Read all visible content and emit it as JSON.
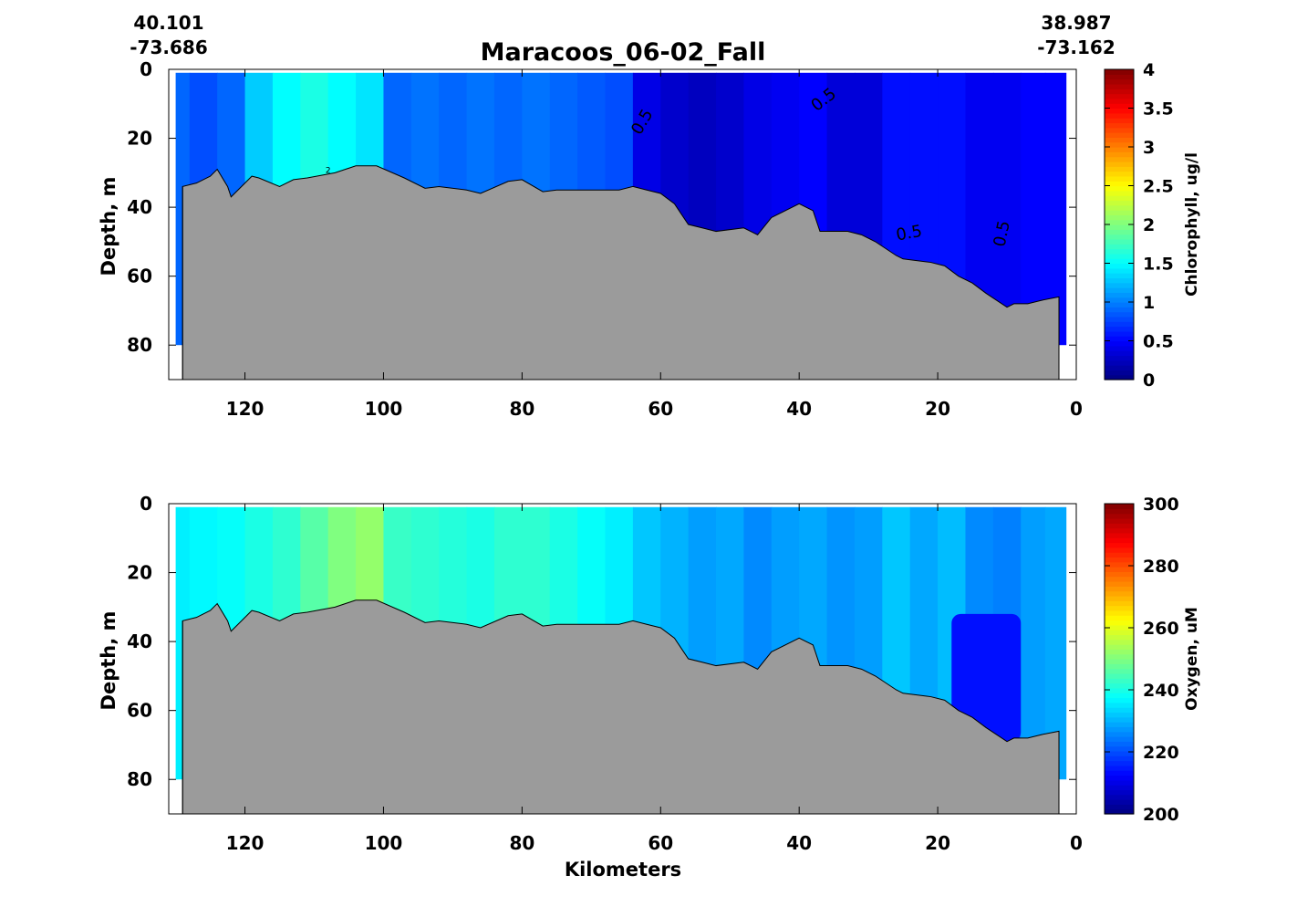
{
  "figure": {
    "title": "Maracoos_06-02_Fall",
    "start_lat": "40.101",
    "start_lon": "-73.686",
    "end_lat": "38.987",
    "end_lon": "-73.162",
    "xlabel": "Kilometers"
  },
  "chart_data": [
    {
      "type": "heatmap",
      "name": "chlorophyll",
      "ylabel": "Depth, m",
      "colorbar_label": "Chlorophyll, ug/l",
      "colormap": "jet",
      "clim": [
        0,
        4
      ],
      "colorbar_ticks": [
        "0",
        "0.5",
        "1",
        "1.5",
        "2",
        "2.5",
        "3",
        "3.5",
        "4"
      ],
      "xlim": [
        131,
        0
      ],
      "ylim": [
        0,
        90
      ],
      "x_reversed": true,
      "y_reversed": true,
      "xticks": [
        "120",
        "100",
        "80",
        "60",
        "40",
        "20",
        "0"
      ],
      "yticks": [
        "0",
        "20",
        "40",
        "60",
        "80"
      ],
      "contour_labels": [
        "0.5",
        "0.5",
        "0.5",
        "0.5",
        "2"
      ],
      "columns": [
        {
          "x": 130,
          "v": 0.9
        },
        {
          "x": 126,
          "v": 0.8
        },
        {
          "x": 122,
          "v": 0.9
        },
        {
          "x": 118,
          "v": 1.3
        },
        {
          "x": 114,
          "v": 1.5
        },
        {
          "x": 110,
          "v": 1.6
        },
        {
          "x": 106,
          "v": 1.5
        },
        {
          "x": 102,
          "v": 1.4
        },
        {
          "x": 98,
          "v": 0.9
        },
        {
          "x": 94,
          "v": 0.95
        },
        {
          "x": 90,
          "v": 0.9
        },
        {
          "x": 86,
          "v": 0.95
        },
        {
          "x": 82,
          "v": 0.9
        },
        {
          "x": 78,
          "v": 0.95
        },
        {
          "x": 74,
          "v": 0.9
        },
        {
          "x": 70,
          "v": 0.85
        },
        {
          "x": 66,
          "v": 0.8
        },
        {
          "x": 62,
          "v": 0.4
        },
        {
          "x": 58,
          "v": 0.3
        },
        {
          "x": 54,
          "v": 0.25
        },
        {
          "x": 50,
          "v": 0.3
        },
        {
          "x": 46,
          "v": 0.4
        },
        {
          "x": 42,
          "v": 0.45
        },
        {
          "x": 38,
          "v": 0.5
        },
        {
          "x": 34,
          "v": 0.35
        },
        {
          "x": 30,
          "v": 0.35
        },
        {
          "x": 26,
          "v": 0.55
        },
        {
          "x": 22,
          "v": 0.55
        },
        {
          "x": 18,
          "v": 0.55
        },
        {
          "x": 14,
          "v": 0.45
        },
        {
          "x": 10,
          "v": 0.45
        },
        {
          "x": 6,
          "v": 0.5
        },
        {
          "x": 3,
          "v": 0.5
        }
      ],
      "bathymetry": [
        [
          129,
          34
        ],
        [
          127,
          33
        ],
        [
          125,
          31
        ],
        [
          124,
          29
        ],
        [
          122.5,
          34
        ],
        [
          122,
          37
        ],
        [
          121,
          35
        ],
        [
          119,
          31
        ],
        [
          118,
          31.5
        ],
        [
          115,
          34
        ],
        [
          113,
          32
        ],
        [
          111,
          31.5
        ],
        [
          107,
          30
        ],
        [
          104,
          28
        ],
        [
          101,
          28
        ],
        [
          97,
          31.5
        ],
        [
          94,
          34.5
        ],
        [
          92,
          34
        ],
        [
          88,
          35
        ],
        [
          86,
          36
        ],
        [
          82,
          32.5
        ],
        [
          80,
          32
        ],
        [
          77,
          35.5
        ],
        [
          75,
          35
        ],
        [
          66,
          35
        ],
        [
          64,
          34
        ],
        [
          62,
          35
        ],
        [
          60,
          36
        ],
        [
          58,
          39
        ],
        [
          56,
          45
        ],
        [
          54,
          46
        ],
        [
          52,
          47
        ],
        [
          48,
          46
        ],
        [
          46,
          48
        ],
        [
          44,
          43
        ],
        [
          40,
          39
        ],
        [
          38,
          41
        ],
        [
          37,
          47
        ],
        [
          33,
          47
        ],
        [
          31,
          48
        ],
        [
          29,
          50
        ],
        [
          26,
          54
        ],
        [
          25,
          55
        ],
        [
          21,
          56
        ],
        [
          19,
          57
        ],
        [
          17,
          60
        ],
        [
          15,
          62
        ],
        [
          13,
          65
        ],
        [
          10,
          69
        ],
        [
          9,
          68
        ],
        [
          7,
          68
        ],
        [
          5,
          67
        ],
        [
          2.5,
          66
        ],
        [
          2.5,
          90
        ]
      ]
    },
    {
      "type": "heatmap",
      "name": "oxygen",
      "ylabel": "Depth, m",
      "colorbar_label": "Oxygen, uM",
      "colormap": "jet",
      "clim": [
        200,
        300
      ],
      "colorbar_ticks": [
        "200",
        "220",
        "240",
        "260",
        "280",
        "300"
      ],
      "xlim": [
        131,
        0
      ],
      "ylim": [
        0,
        90
      ],
      "x_reversed": true,
      "y_reversed": true,
      "xticks": [
        "120",
        "100",
        "80",
        "60",
        "40",
        "20",
        "0"
      ],
      "yticks": [
        "0",
        "20",
        "40",
        "60",
        "80"
      ],
      "columns": [
        {
          "x": 130,
          "v": 236
        },
        {
          "x": 126,
          "v": 237
        },
        {
          "x": 122,
          "v": 238
        },
        {
          "x": 118,
          "v": 240
        },
        {
          "x": 114,
          "v": 242
        },
        {
          "x": 110,
          "v": 246
        },
        {
          "x": 106,
          "v": 250
        },
        {
          "x": 102,
          "v": 252
        },
        {
          "x": 98,
          "v": 243
        },
        {
          "x": 94,
          "v": 242
        },
        {
          "x": 90,
          "v": 241
        },
        {
          "x": 86,
          "v": 240
        },
        {
          "x": 82,
          "v": 242
        },
        {
          "x": 78,
          "v": 242
        },
        {
          "x": 74,
          "v": 240
        },
        {
          "x": 70,
          "v": 238
        },
        {
          "x": 66,
          "v": 236
        },
        {
          "x": 62,
          "v": 232
        },
        {
          "x": 58,
          "v": 230
        },
        {
          "x": 54,
          "v": 228
        },
        {
          "x": 50,
          "v": 229
        },
        {
          "x": 46,
          "v": 226
        },
        {
          "x": 42,
          "v": 228
        },
        {
          "x": 38,
          "v": 229
        },
        {
          "x": 34,
          "v": 227
        },
        {
          "x": 30,
          "v": 228
        },
        {
          "x": 26,
          "v": 232
        },
        {
          "x": 22,
          "v": 229
        },
        {
          "x": 18,
          "v": 231
        },
        {
          "x": 14,
          "v": 226
        },
        {
          "x": 10,
          "v": 225
        },
        {
          "x": 6,
          "v": 228
        },
        {
          "x": 3,
          "v": 229
        }
      ],
      "low_patch": {
        "x_range": [
          18,
          8
        ],
        "y_range": [
          32,
          69
        ],
        "v": 214
      },
      "bathymetry": [
        [
          129,
          34
        ],
        [
          127,
          33
        ],
        [
          125,
          31
        ],
        [
          124,
          29
        ],
        [
          122.5,
          34
        ],
        [
          122,
          37
        ],
        [
          121,
          35
        ],
        [
          119,
          31
        ],
        [
          118,
          31.5
        ],
        [
          115,
          34
        ],
        [
          113,
          32
        ],
        [
          111,
          31.5
        ],
        [
          107,
          30
        ],
        [
          104,
          28
        ],
        [
          101,
          28
        ],
        [
          97,
          31.5
        ],
        [
          94,
          34.5
        ],
        [
          92,
          34
        ],
        [
          88,
          35
        ],
        [
          86,
          36
        ],
        [
          82,
          32.5
        ],
        [
          80,
          32
        ],
        [
          77,
          35.5
        ],
        [
          75,
          35
        ],
        [
          66,
          35
        ],
        [
          64,
          34
        ],
        [
          62,
          35
        ],
        [
          60,
          36
        ],
        [
          58,
          39
        ],
        [
          56,
          45
        ],
        [
          54,
          46
        ],
        [
          52,
          47
        ],
        [
          48,
          46
        ],
        [
          46,
          48
        ],
        [
          44,
          43
        ],
        [
          40,
          39
        ],
        [
          38,
          41
        ],
        [
          37,
          47
        ],
        [
          33,
          47
        ],
        [
          31,
          48
        ],
        [
          29,
          50
        ],
        [
          26,
          54
        ],
        [
          25,
          55
        ],
        [
          21,
          56
        ],
        [
          19,
          57
        ],
        [
          17,
          60
        ],
        [
          15,
          62
        ],
        [
          13,
          65
        ],
        [
          10,
          69
        ],
        [
          9,
          68
        ],
        [
          7,
          68
        ],
        [
          5,
          67
        ],
        [
          2.5,
          66
        ],
        [
          2.5,
          90
        ]
      ]
    }
  ]
}
